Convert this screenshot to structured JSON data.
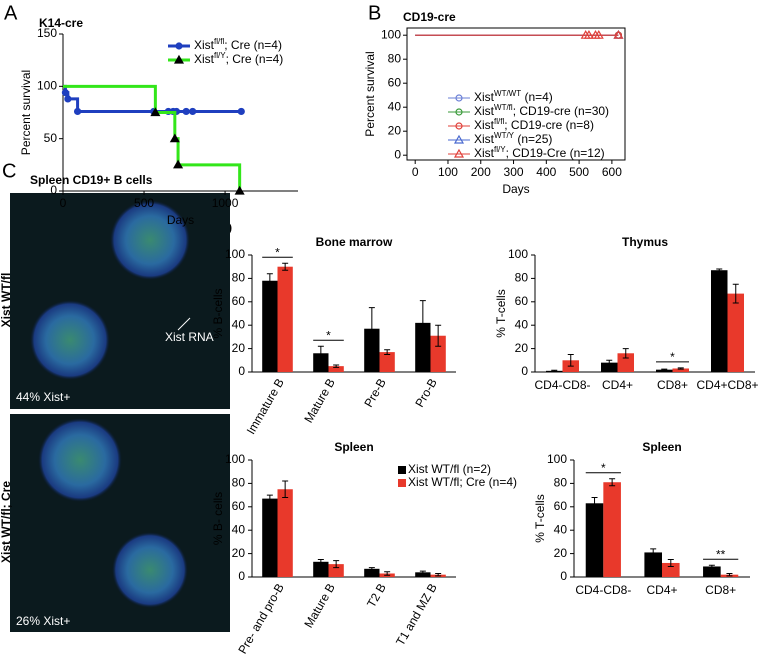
{
  "panel_labels": [
    "A",
    "B",
    "C",
    "D"
  ],
  "image_panel": {
    "title": "Spleen CD19+ B cells",
    "top_label": "Xist WT/fl",
    "top_arrow": "Xist RNA",
    "top_percent": "44% Xist+",
    "bottom_label": "Xist WT/fl; Cre",
    "bottom_percent": "26% Xist+"
  },
  "chart_data": [
    {
      "type": "survival",
      "title": "K14-cre",
      "xlabel": "Days",
      "ylabel": "Percent survival",
      "xlim": [
        0,
        1450
      ],
      "xticks": [
        0,
        500,
        1000
      ],
      "ylim": [
        0,
        150
      ],
      "yticks": [
        0,
        50,
        100,
        150
      ],
      "frame": false,
      "series": [
        {
          "name": [
            "Xist",
            "fl/fl",
            "; Cre (n=4)"
          ],
          "color": "#1f3fbf",
          "marker": "circle",
          "marker_fill": true,
          "x": [
            0,
            15,
            30,
            90,
            560,
            650,
            680,
            700,
            760,
            800,
            1100
          ],
          "values": [
            100,
            94,
            88,
            76,
            76,
            76,
            76,
            76,
            76,
            76,
            76
          ]
        },
        {
          "name": [
            "Xist",
            "fl/Y",
            "; Cre (n=4)"
          ],
          "color": "#33e61a",
          "marker": "triangle",
          "marker_fill": true,
          "x": [
            0,
            570,
            690,
            710,
            1090
          ],
          "values": [
            100,
            75,
            50,
            25,
            0
          ]
        }
      ]
    },
    {
      "type": "survival",
      "title": "CD19-cre",
      "xlabel": "Days",
      "ylabel": "Percent survival",
      "xlim": [
        -25,
        640
      ],
      "xticks": [
        0,
        100,
        200,
        300,
        400,
        500,
        600
      ],
      "ylim": [
        -4,
        106
      ],
      "yticks": [
        0,
        20,
        40,
        60,
        80,
        100
      ],
      "frame": true,
      "series": [
        {
          "name": [
            "Xist",
            "WT/WT",
            " (n=4)"
          ],
          "color": "#6a7fd6",
          "marker": "circle",
          "marker_fill": false,
          "x": [
            0,
            620
          ],
          "values": [
            100,
            100
          ]
        },
        {
          "name": [
            "Xist",
            "WT/fl",
            "; CD19-cre  (n=30)"
          ],
          "color": "#3a9a3a",
          "marker": "circle",
          "marker_fill": false,
          "x": [
            0,
            620
          ],
          "values": [
            100,
            100
          ]
        },
        {
          "name": [
            "Xist",
            "fl/fl",
            "; CD19-cre  (n=8)"
          ],
          "color": "#e0403a",
          "marker": "circle",
          "marker_fill": false,
          "x": [
            0,
            620
          ],
          "values": [
            100,
            100
          ]
        },
        {
          "name": [
            "Xist",
            "WT/Y",
            " (n=25)"
          ],
          "color": "#4a6ad0",
          "marker": "triangle",
          "marker_fill": false,
          "x": [
            0,
            620
          ],
          "values": [
            100,
            100
          ]
        },
        {
          "name": [
            "Xist",
            "fl/Y",
            "; CD19-Cre  (n=12)"
          ],
          "color": "#e0403a",
          "marker": "triangle",
          "marker_fill": false,
          "x": [
            0,
            520,
            530,
            550,
            560,
            620
          ],
          "values": [
            100,
            100,
            100,
            100,
            100,
            100
          ]
        }
      ]
    },
    {
      "type": "bar",
      "title": "Bone marrow",
      "ylabel": "% B-cells",
      "ylim": [
        0,
        100
      ],
      "yticks": [
        0,
        20,
        40,
        60,
        80,
        100
      ],
      "categories": [
        "Immature B",
        "Mature B",
        "Pre-B",
        "Pro-B"
      ],
      "series": [
        {
          "color": "#000000",
          "values": [
            78,
            16,
            37,
            42
          ],
          "errors": [
            6,
            6,
            18,
            19
          ]
        },
        {
          "color": "#e8392b",
          "values": [
            90,
            5,
            17,
            31
          ],
          "errors": [
            3,
            1,
            2,
            9
          ]
        }
      ],
      "annotations": [
        {
          "label": "*",
          "at": "Immature B"
        },
        {
          "label": "*",
          "at": "Mature B"
        }
      ]
    },
    {
      "type": "bar",
      "title": "Thymus",
      "ylabel": "% T-cells",
      "ylim": [
        0,
        100
      ],
      "yticks": [
        0,
        20,
        40,
        60,
        80,
        100
      ],
      "categories": [
        "CD4-CD8-",
        "CD4+",
        "CD8+",
        "CD4+CD8+"
      ],
      "series": [
        {
          "color": "#000000",
          "values": [
            1,
            8,
            2,
            87
          ],
          "errors": [
            0.5,
            2,
            0.5,
            1
          ]
        },
        {
          "color": "#e8392b",
          "values": [
            10,
            16,
            3,
            67
          ],
          "errors": [
            5,
            4,
            0.5,
            8
          ]
        }
      ],
      "annotations": [
        {
          "label": "*",
          "at": "CD8+"
        }
      ]
    },
    {
      "type": "bar",
      "title": "Spleen",
      "ylabel": "% B- cells",
      "ylim": [
        0,
        100
      ],
      "yticks": [
        0,
        20,
        40,
        60,
        80,
        100
      ],
      "categories": [
        "Pre- and pro-B",
        "Mature B",
        "T2 B",
        "T1 and MZ B"
      ],
      "series": [
        {
          "name": "Xist WT/fl (n=2)",
          "color": "#000000",
          "values": [
            67,
            13,
            7,
            4
          ],
          "errors": [
            3,
            2,
            1,
            1
          ]
        },
        {
          "name": "Xist WT/fl; Cre (n=4)",
          "color": "#e8392b",
          "values": [
            75,
            11,
            3,
            2
          ],
          "errors": [
            7,
            3,
            1.5,
            1
          ]
        }
      ],
      "annotations": []
    },
    {
      "type": "bar",
      "title": "Spleen",
      "ylabel": "% T-cells",
      "ylim": [
        0,
        100
      ],
      "yticks": [
        0,
        20,
        40,
        60,
        80,
        100
      ],
      "categories": [
        "CD4-CD8-",
        "CD4+",
        "CD8+"
      ],
      "series": [
        {
          "color": "#000000",
          "values": [
            63,
            21,
            9
          ],
          "errors": [
            5,
            3,
            1
          ]
        },
        {
          "color": "#e8392b",
          "values": [
            81,
            12,
            2
          ],
          "errors": [
            3,
            3,
            1
          ]
        }
      ],
      "annotations": [
        {
          "label": "*",
          "at": "CD4-CD8-"
        },
        {
          "label": "**",
          "at": "CD8+"
        }
      ]
    }
  ]
}
